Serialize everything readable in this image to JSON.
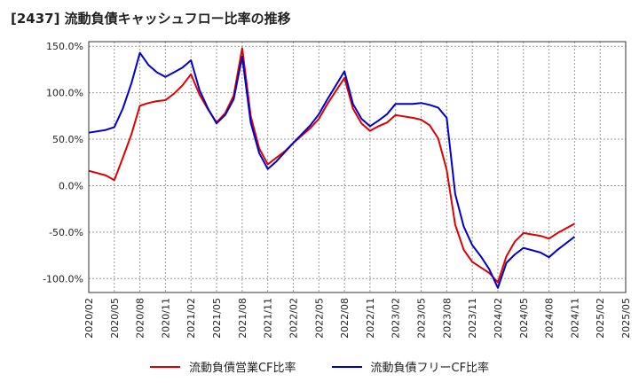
{
  "chart_data": {
    "type": "line",
    "title": "[2437]  流動負債キャッシュフロー比率の推移",
    "xlabel": "",
    "ylabel": "",
    "ylim": [
      -115,
      155
    ],
    "grid": true,
    "legend_position": "bottom",
    "y_ticks": [
      {
        "v": 150,
        "label": "150.0%"
      },
      {
        "v": 100,
        "label": "100.0%"
      },
      {
        "v": 50,
        "label": "50.0%"
      },
      {
        "v": 0,
        "label": "0.0%"
      },
      {
        "v": -50,
        "label": "-50.0%"
      },
      {
        "v": -100,
        "label": "-100.0%"
      }
    ],
    "x_ticks": [
      "2020/02",
      "2020/05",
      "2020/08",
      "2020/11",
      "2021/02",
      "2021/05",
      "2021/08",
      "2021/11",
      "2022/02",
      "2022/05",
      "2022/08",
      "2022/11",
      "2023/02",
      "2023/05",
      "2023/08",
      "2023/11",
      "2024/02",
      "2024/05",
      "2024/08",
      "2024/11",
      "2025/02",
      "2025/05"
    ],
    "series": [
      {
        "name": "流動負債営業CF比率",
        "color": "#dd0000",
        "points": [
          [
            "2020/02",
            16
          ],
          [
            "2020/04",
            11
          ],
          [
            "2020/05",
            6
          ],
          [
            "2020/06",
            30
          ],
          [
            "2020/07",
            55
          ],
          [
            "2020/08",
            86
          ],
          [
            "2020/09",
            89
          ],
          [
            "2020/10",
            91
          ],
          [
            "2020/11",
            92
          ],
          [
            "2020/12",
            99
          ],
          [
            "2021/01",
            108
          ],
          [
            "2021/02",
            120
          ],
          [
            "2021/03",
            98
          ],
          [
            "2021/04",
            82
          ],
          [
            "2021/05",
            68
          ],
          [
            "2021/06",
            78
          ],
          [
            "2021/07",
            97
          ],
          [
            "2021/08",
            148
          ],
          [
            "2021/09",
            75
          ],
          [
            "2021/10",
            40
          ],
          [
            "2021/11",
            23
          ],
          [
            "2021/12",
            30
          ],
          [
            "2022/01",
            37
          ],
          [
            "2022/02",
            46
          ],
          [
            "2022/04",
            62
          ],
          [
            "2022/05",
            72
          ],
          [
            "2022/06",
            88
          ],
          [
            "2022/07",
            102
          ],
          [
            "2022/08",
            116
          ],
          [
            "2022/09",
            83
          ],
          [
            "2022/10",
            67
          ],
          [
            "2022/11",
            59
          ],
          [
            "2022/12",
            64
          ],
          [
            "2023/01",
            68
          ],
          [
            "2023/02",
            76
          ],
          [
            "2023/04",
            73
          ],
          [
            "2023/05",
            71
          ],
          [
            "2023/06",
            65
          ],
          [
            "2023/07",
            51
          ],
          [
            "2023/08",
            17
          ],
          [
            "2023/09",
            -42
          ],
          [
            "2023/10",
            -69
          ],
          [
            "2023/11",
            -82
          ],
          [
            "2023/12",
            -88
          ],
          [
            "2024/01",
            -94
          ],
          [
            "2024/02",
            -104
          ],
          [
            "2024/03",
            -76
          ],
          [
            "2024/04",
            -60
          ],
          [
            "2024/05",
            -51
          ],
          [
            "2024/07",
            -54
          ],
          [
            "2024/08",
            -57
          ],
          [
            "2024/09",
            -51
          ],
          [
            "2024/11",
            -41
          ]
        ]
      },
      {
        "name": "流動負債フリーCF比率",
        "color": "#0000cc",
        "points": [
          [
            "2020/02",
            57
          ],
          [
            "2020/04",
            60
          ],
          [
            "2020/05",
            63
          ],
          [
            "2020/06",
            83
          ],
          [
            "2020/07",
            110
          ],
          [
            "2020/08",
            143
          ],
          [
            "2020/09",
            130
          ],
          [
            "2020/10",
            122
          ],
          [
            "2020/11",
            117
          ],
          [
            "2020/12",
            122
          ],
          [
            "2021/01",
            127
          ],
          [
            "2021/02",
            135
          ],
          [
            "2021/03",
            103
          ],
          [
            "2021/04",
            83
          ],
          [
            "2021/05",
            67
          ],
          [
            "2021/06",
            76
          ],
          [
            "2021/07",
            93
          ],
          [
            "2021/08",
            139
          ],
          [
            "2021/09",
            68
          ],
          [
            "2021/10",
            35
          ],
          [
            "2021/11",
            18
          ],
          [
            "2021/12",
            26
          ],
          [
            "2022/01",
            36
          ],
          [
            "2022/02",
            46
          ],
          [
            "2022/04",
            65
          ],
          [
            "2022/05",
            77
          ],
          [
            "2022/06",
            93
          ],
          [
            "2022/07",
            108
          ],
          [
            "2022/08",
            123
          ],
          [
            "2022/09",
            88
          ],
          [
            "2022/10",
            72
          ],
          [
            "2022/11",
            64
          ],
          [
            "2022/12",
            70
          ],
          [
            "2023/01",
            77
          ],
          [
            "2023/02",
            88
          ],
          [
            "2023/04",
            88
          ],
          [
            "2023/05",
            89
          ],
          [
            "2023/06",
            87
          ],
          [
            "2023/07",
            84
          ],
          [
            "2023/08",
            73
          ],
          [
            "2023/09",
            -9
          ],
          [
            "2023/10",
            -44
          ],
          [
            "2023/11",
            -64
          ],
          [
            "2023/12",
            -76
          ],
          [
            "2024/01",
            -90
          ],
          [
            "2024/02",
            -110
          ],
          [
            "2024/03",
            -83
          ],
          [
            "2024/04",
            -74
          ],
          [
            "2024/05",
            -67
          ],
          [
            "2024/07",
            -72
          ],
          [
            "2024/08",
            -77
          ],
          [
            "2024/09",
            -69
          ],
          [
            "2024/11",
            -55
          ]
        ]
      }
    ]
  }
}
